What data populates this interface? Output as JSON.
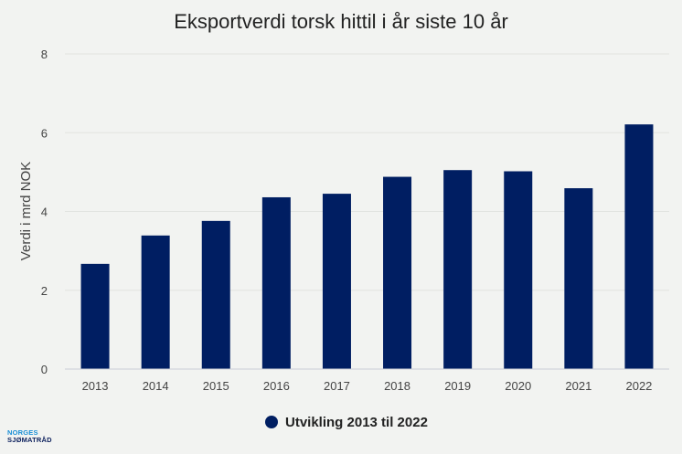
{
  "chart_data": {
    "type": "bar",
    "title": "Eksportverdi torsk hittil i år siste 10 år",
    "xlabel": "",
    "ylabel": "Verdi i mrd NOK",
    "categories": [
      "2013",
      "2014",
      "2015",
      "2016",
      "2017",
      "2018",
      "2019",
      "2020",
      "2021",
      "2022"
    ],
    "series": [
      {
        "name": "Utvikling 2013 til 2022",
        "values": [
          2.67,
          3.39,
          3.76,
          4.36,
          4.45,
          4.88,
          5.05,
          5.02,
          4.59,
          6.21
        ],
        "color": "#001e62"
      }
    ],
    "ylim": [
      0,
      8
    ],
    "yticks": [
      "0",
      "2",
      "4",
      "6",
      "8"
    ],
    "grid": true,
    "legend_position": "bottom"
  },
  "logo": {
    "line1": "NORGES",
    "line2": "SJØMATRÅD"
  },
  "colors": {
    "background": "#f2f3f1",
    "bar": "#001e62",
    "grid": "#e1e3e0",
    "axis_text": "#444444"
  }
}
